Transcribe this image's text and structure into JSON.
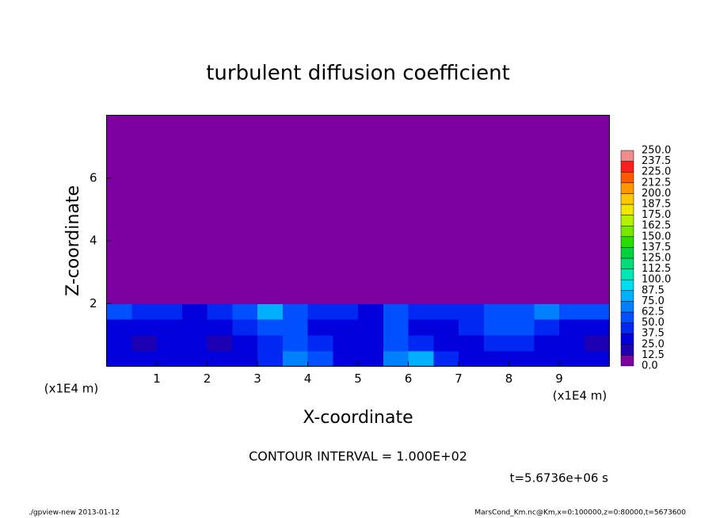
{
  "chart_data": {
    "type": "heatmap",
    "title": "turbulent diffusion coefficient",
    "xlabel": "X-coordinate",
    "ylabel": "Z-coordinate",
    "xunit": "(x1E4 m)",
    "yunit": "(x1E4 m)",
    "contour_note": "CONTOUR INTERVAL = 1.000E+02",
    "time_label": "t=5.6736e+06 s",
    "footer_left": "./gpview-new  2013-01-12",
    "footer_right": "MarsCond_Km.nc@Km,x=0:100000,z=0:80000,t=5673600",
    "xlim": [
      0,
      10
    ],
    "ylim": [
      0,
      8
    ],
    "xticks": [
      1,
      2,
      3,
      4,
      5,
      6,
      7,
      8,
      9
    ],
    "yticks": [
      2,
      4,
      6
    ],
    "z": [
      [
        30,
        25,
        30,
        35,
        25,
        30,
        40,
        70,
        60,
        30,
        35,
        70,
        75,
        40,
        30,
        25,
        35,
        30,
        25,
        30
      ],
      [
        25,
        20,
        30,
        25,
        20,
        30,
        45,
        60,
        40,
        25,
        35,
        60,
        40,
        30,
        25,
        45,
        40,
        30,
        25,
        20
      ],
      [
        35,
        30,
        25,
        30,
        35,
        40,
        60,
        55,
        30,
        25,
        35,
        50,
        30,
        35,
        40,
        55,
        60,
        45,
        35,
        30
      ],
      [
        50,
        45,
        40,
        35,
        45,
        55,
        75,
        60,
        45,
        40,
        35,
        50,
        45,
        40,
        45,
        50,
        60,
        70,
        55,
        50
      ],
      [
        0,
        0,
        0,
        0,
        0,
        0,
        0,
        0,
        0,
        0,
        0,
        0,
        0,
        0,
        0,
        0,
        0,
        0,
        0,
        0
      ],
      [
        0,
        0,
        0,
        0,
        0,
        0,
        0,
        0,
        0,
        0,
        0,
        0,
        0,
        0,
        0,
        0,
        0,
        0,
        0,
        0
      ],
      [
        0,
        0,
        0,
        0,
        0,
        0,
        0,
        0,
        0,
        0,
        0,
        0,
        0,
        0,
        0,
        0,
        0,
        0,
        0,
        0
      ],
      [
        0,
        0,
        0,
        0,
        0,
        0,
        0,
        0,
        0,
        0,
        0,
        0,
        0,
        0,
        0,
        0,
        0,
        0,
        0,
        0
      ],
      [
        0,
        0,
        0,
        0,
        0,
        0,
        0,
        0,
        0,
        0,
        0,
        0,
        0,
        0,
        0,
        0,
        0,
        0,
        0,
        0
      ],
      [
        0,
        0,
        0,
        0,
        0,
        0,
        0,
        0,
        0,
        0,
        0,
        0,
        0,
        0,
        0,
        0,
        0,
        0,
        0,
        0
      ],
      [
        0,
        0,
        0,
        0,
        0,
        0,
        0,
        0,
        0,
        0,
        0,
        0,
        0,
        0,
        0,
        0,
        0,
        0,
        0,
        0
      ],
      [
        0,
        0,
        0,
        0,
        0,
        0,
        0,
        0,
        0,
        0,
        0,
        0,
        0,
        0,
        0,
        0,
        0,
        0,
        0,
        0
      ],
      [
        0,
        0,
        0,
        0,
        0,
        0,
        0,
        0,
        0,
        0,
        0,
        0,
        0,
        0,
        0,
        0,
        0,
        0,
        0,
        0
      ],
      [
        0,
        0,
        0,
        0,
        0,
        0,
        0,
        0,
        0,
        0,
        0,
        0,
        0,
        0,
        0,
        0,
        0,
        0,
        0,
        0
      ],
      [
        0,
        0,
        0,
        0,
        0,
        0,
        0,
        0,
        0,
        0,
        0,
        0,
        0,
        0,
        0,
        0,
        0,
        0,
        0,
        0
      ],
      [
        0,
        0,
        0,
        0,
        0,
        0,
        0,
        0,
        0,
        0,
        0,
        0,
        0,
        0,
        0,
        0,
        0,
        0,
        0,
        0
      ]
    ],
    "colorbar": {
      "ticks": [
        {
          "value": 0,
          "label": "0.0"
        },
        {
          "value": 12.5,
          "label": "12.5"
        },
        {
          "value": 25,
          "label": "25.0"
        },
        {
          "value": 37.5,
          "label": "37.5"
        },
        {
          "value": 50,
          "label": "50.0"
        },
        {
          "value": 62.5,
          "label": "62.5"
        },
        {
          "value": 75,
          "label": "75.0"
        },
        {
          "value": 87.5,
          "label": "87.5"
        },
        {
          "value": 100,
          "label": "100.0"
        },
        {
          "value": 112.5,
          "label": "112.5"
        },
        {
          "value": 125,
          "label": "125.0"
        },
        {
          "value": 137.5,
          "label": "137.5"
        },
        {
          "value": 150,
          "label": "150.0"
        },
        {
          "value": 162.5,
          "label": "162.5"
        },
        {
          "value": 175,
          "label": "175.0"
        },
        {
          "value": 187.5,
          "label": "187.5"
        },
        {
          "value": 200,
          "label": "200.0"
        },
        {
          "value": 212.5,
          "label": "212.5"
        },
        {
          "value": 225,
          "label": "225.0"
        },
        {
          "value": 237.5,
          "label": "237.5"
        },
        {
          "value": 250,
          "label": "250.0"
        }
      ],
      "colors": [
        "#7d00a0",
        "#1e00b4",
        "#0000dc",
        "#0028f0",
        "#0050ff",
        "#0080ff",
        "#00b0ff",
        "#00dcf0",
        "#00e6b4",
        "#00dc78",
        "#00d23c",
        "#28dc00",
        "#78e600",
        "#b4f000",
        "#f0e600",
        "#ffc800",
        "#ff9600",
        "#ff5a00",
        "#ff1e1e",
        "#f08c8c"
      ]
    }
  }
}
